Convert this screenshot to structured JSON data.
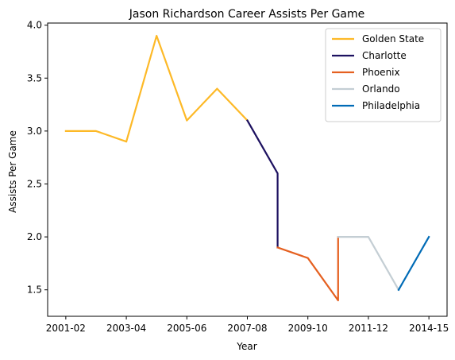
{
  "chart_data": {
    "type": "line",
    "title": "Jason Richardson Career Assists Per Game",
    "xlabel": "Year",
    "ylabel": "Assists Per Game",
    "x_ticks": [
      "2001-02",
      "2003-04",
      "2005-06",
      "2007-08",
      "2009-10",
      "2011-12",
      "2014-15"
    ],
    "x_tick_positions": [
      0,
      2,
      4,
      6,
      8,
      10,
      12
    ],
    "y_ticks": [
      "1.5",
      "2.0",
      "2.5",
      "3.0",
      "3.5",
      "4.0"
    ],
    "y_tick_values": [
      1.5,
      2.0,
      2.5,
      3.0,
      3.5,
      4.0
    ],
    "xlim": [
      -0.6,
      12.6
    ],
    "ylim": [
      1.25,
      4.02
    ],
    "grid": false,
    "legend_position": "top-right",
    "series": [
      {
        "name": "Golden State",
        "color": "#FDB927",
        "x": [
          0,
          1,
          2,
          3,
          4,
          5,
          6
        ],
        "y": [
          3.0,
          3.0,
          2.9,
          3.9,
          3.1,
          3.4,
          3.1
        ]
      },
      {
        "name": "Charlotte",
        "color": "#1D1160",
        "x": [
          6,
          7,
          7
        ],
        "y": [
          3.1,
          2.6,
          1.9
        ]
      },
      {
        "name": "Phoenix",
        "color": "#E56020",
        "x": [
          7,
          8,
          9,
          9
        ],
        "y": [
          1.9,
          1.8,
          1.4,
          2.0
        ]
      },
      {
        "name": "Orlando",
        "color": "#C4CED4",
        "x": [
          9,
          10,
          11
        ],
        "y": [
          2.0,
          2.0,
          1.5
        ]
      },
      {
        "name": "Philadelphia",
        "color": "#006BB6",
        "x": [
          11,
          12
        ],
        "y": [
          1.5,
          2.0
        ]
      }
    ]
  }
}
